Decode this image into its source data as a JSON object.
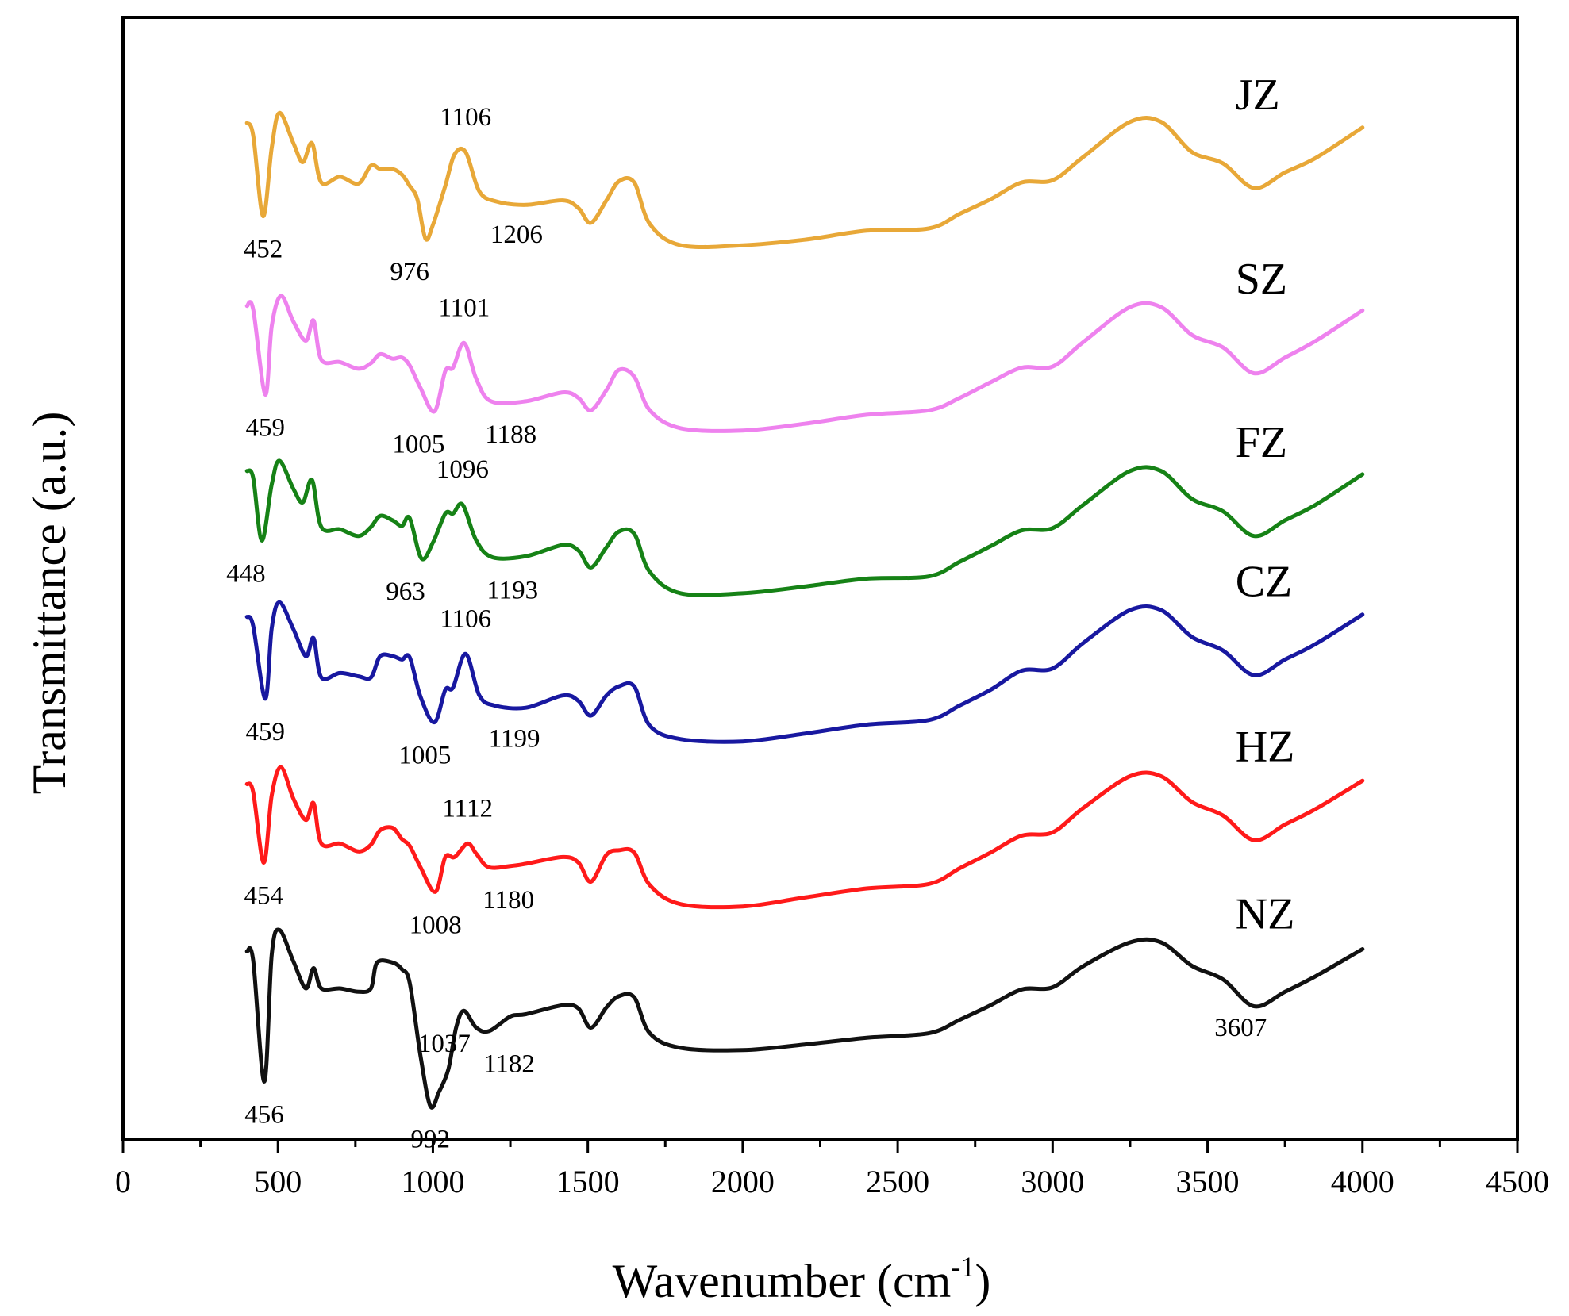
{
  "chart_data": {
    "type": "line",
    "title": "",
    "xlabel": "Wavenumber (cm",
    "xlabel_sup": "-1",
    "xlabel_close": ")",
    "ylabel": "Transmittance (a.u.)",
    "xlim": [
      0,
      4500
    ],
    "ylim": [
      0,
      1
    ],
    "xticks": [
      0,
      500,
      1000,
      1500,
      2000,
      2500,
      3000,
      3500,
      4000,
      4500
    ],
    "xtick_labels": [
      "0",
      "500",
      "1000",
      "1500",
      "2000",
      "2500",
      "3000",
      "3500",
      "4000",
      "4500"
    ],
    "grid": false,
    "y_units": "offset transmittance (a.u.), 0 = bottom axis, 1 = top of frame",
    "series": [
      {
        "name": "JZ",
        "color": "#E8A838",
        "x": [
          400,
          420,
          452,
          480,
          505,
          550,
          580,
          610,
          640,
          700,
          760,
          800,
          830,
          870,
          900,
          925,
          950,
          976,
          1000,
          1040,
          1070,
          1106,
          1150,
          1206,
          1300,
          1420,
          1470,
          1510,
          1560,
          1600,
          1650,
          1700,
          1800,
          2000,
          2200,
          2400,
          2600,
          2700,
          2800,
          2900,
          3000,
          3100,
          3250,
          3350,
          3450,
          3550,
          3650,
          3750,
          3850,
          4000
        ],
        "values": [
          0.906,
          0.895,
          0.823,
          0.884,
          0.915,
          0.888,
          0.871,
          0.888,
          0.853,
          0.858,
          0.852,
          0.868,
          0.865,
          0.865,
          0.86,
          0.85,
          0.838,
          0.803,
          0.815,
          0.85,
          0.878,
          0.88,
          0.845,
          0.836,
          0.833,
          0.837,
          0.83,
          0.817,
          0.837,
          0.854,
          0.853,
          0.816,
          0.797,
          0.797,
          0.802,
          0.81,
          0.812,
          0.825,
          0.838,
          0.853,
          0.855,
          0.876,
          0.907,
          0.907,
          0.88,
          0.87,
          0.848,
          0.862,
          0.875,
          0.902
        ]
      },
      {
        "name": "SZ",
        "color": "#EE82EE",
        "x": [
          400,
          420,
          459,
          480,
          510,
          550,
          590,
          615,
          640,
          700,
          760,
          800,
          830,
          870,
          900,
          925,
          960,
          1005,
          1040,
          1065,
          1101,
          1140,
          1188,
          1300,
          1420,
          1470,
          1510,
          1560,
          1600,
          1650,
          1700,
          1800,
          2000,
          2200,
          2400,
          2600,
          2700,
          2800,
          2900,
          3000,
          3100,
          3250,
          3350,
          3450,
          3550,
          3650,
          3750,
          3850,
          4000
        ],
        "values": [
          0.743,
          0.74,
          0.664,
          0.725,
          0.752,
          0.729,
          0.712,
          0.73,
          0.695,
          0.693,
          0.687,
          0.692,
          0.7,
          0.696,
          0.697,
          0.69,
          0.67,
          0.649,
          0.685,
          0.688,
          0.71,
          0.678,
          0.658,
          0.658,
          0.666,
          0.661,
          0.65,
          0.668,
          0.686,
          0.68,
          0.65,
          0.634,
          0.632,
          0.638,
          0.646,
          0.65,
          0.661,
          0.675,
          0.688,
          0.689,
          0.711,
          0.742,
          0.742,
          0.717,
          0.706,
          0.683,
          0.697,
          0.712,
          0.739
        ]
      },
      {
        "name": "FZ",
        "color": "#168216",
        "x": [
          400,
          420,
          448,
          480,
          505,
          550,
          580,
          610,
          640,
          700,
          760,
          800,
          830,
          870,
          900,
          925,
          963,
          1000,
          1040,
          1065,
          1096,
          1140,
          1193,
          1300,
          1420,
          1470,
          1510,
          1560,
          1600,
          1650,
          1700,
          1800,
          2000,
          2200,
          2400,
          2600,
          2700,
          2800,
          2900,
          3000,
          3100,
          3250,
          3350,
          3450,
          3550,
          3650,
          3750,
          3850,
          4000
        ],
        "values": [
          0.596,
          0.59,
          0.534,
          0.584,
          0.605,
          0.58,
          0.568,
          0.588,
          0.546,
          0.544,
          0.538,
          0.546,
          0.556,
          0.552,
          0.547,
          0.554,
          0.518,
          0.532,
          0.558,
          0.558,
          0.566,
          0.534,
          0.519,
          0.52,
          0.53,
          0.525,
          0.51,
          0.528,
          0.542,
          0.54,
          0.506,
          0.487,
          0.487,
          0.493,
          0.5,
          0.502,
          0.515,
          0.529,
          0.543,
          0.545,
          0.566,
          0.596,
          0.596,
          0.571,
          0.56,
          0.538,
          0.552,
          0.566,
          0.593
        ]
      },
      {
        "name": "CZ",
        "color": "#1818A0",
        "x": [
          400,
          420,
          459,
          480,
          505,
          550,
          590,
          615,
          640,
          700,
          760,
          800,
          830,
          870,
          900,
          925,
          960,
          1005,
          1040,
          1065,
          1106,
          1150,
          1199,
          1300,
          1420,
          1470,
          1510,
          1560,
          1600,
          1650,
          1700,
          1800,
          2000,
          2200,
          2400,
          2600,
          2700,
          2800,
          2900,
          3000,
          3100,
          3250,
          3350,
          3450,
          3550,
          3650,
          3750,
          3850,
          4000
        ],
        "values": [
          0.466,
          0.458,
          0.393,
          0.456,
          0.479,
          0.455,
          0.431,
          0.447,
          0.412,
          0.416,
          0.413,
          0.412,
          0.431,
          0.431,
          0.428,
          0.43,
          0.395,
          0.372,
          0.401,
          0.403,
          0.433,
          0.396,
          0.387,
          0.385,
          0.396,
          0.391,
          0.378,
          0.396,
          0.404,
          0.404,
          0.369,
          0.357,
          0.355,
          0.362,
          0.37,
          0.374,
          0.387,
          0.401,
          0.418,
          0.42,
          0.443,
          0.472,
          0.472,
          0.448,
          0.436,
          0.414,
          0.428,
          0.442,
          0.468
        ]
      },
      {
        "name": "HZ",
        "color": "#FF1A1A",
        "x": [
          400,
          420,
          454,
          480,
          510,
          550,
          590,
          615,
          640,
          700,
          760,
          800,
          830,
          870,
          900,
          925,
          960,
          1008,
          1040,
          1070,
          1112,
          1140,
          1180,
          1250,
          1300,
          1420,
          1470,
          1510,
          1560,
          1600,
          1650,
          1700,
          1800,
          2000,
          2200,
          2400,
          2600,
          2700,
          2800,
          2900,
          3000,
          3100,
          3250,
          3350,
          3450,
          3550,
          3650,
          3750,
          3850,
          4000
        ],
        "values": [
          0.317,
          0.31,
          0.247,
          0.307,
          0.332,
          0.304,
          0.285,
          0.3,
          0.264,
          0.264,
          0.257,
          0.263,
          0.276,
          0.278,
          0.268,
          0.262,
          0.243,
          0.221,
          0.252,
          0.252,
          0.264,
          0.255,
          0.243,
          0.244,
          0.246,
          0.252,
          0.247,
          0.23,
          0.254,
          0.258,
          0.256,
          0.227,
          0.21,
          0.208,
          0.216,
          0.224,
          0.228,
          0.242,
          0.256,
          0.271,
          0.274,
          0.296,
          0.324,
          0.324,
          0.301,
          0.289,
          0.267,
          0.281,
          0.295,
          0.32
        ]
      },
      {
        "name": "NZ",
        "color": "#111111",
        "x": [
          400,
          420,
          456,
          480,
          505,
          550,
          590,
          615,
          640,
          700,
          760,
          800,
          820,
          870,
          900,
          925,
          960,
          992,
          1020,
          1050,
          1075,
          1100,
          1140,
          1182,
          1250,
          1300,
          1420,
          1470,
          1510,
          1560,
          1600,
          1650,
          1700,
          1800,
          2000,
          2200,
          2400,
          2600,
          2700,
          2800,
          2900,
          3000,
          3100,
          3250,
          3350,
          3450,
          3550,
          3650,
          3750,
          3850,
          4000
        ],
        "values": [
          0.168,
          0.16,
          0.052,
          0.165,
          0.187,
          0.159,
          0.135,
          0.153,
          0.135,
          0.135,
          0.132,
          0.135,
          0.158,
          0.158,
          0.152,
          0.14,
          0.075,
          0.03,
          0.043,
          0.063,
          0.1,
          0.115,
          0.1,
          0.097,
          0.11,
          0.112,
          0.12,
          0.117,
          0.1,
          0.118,
          0.128,
          0.127,
          0.095,
          0.082,
          0.08,
          0.085,
          0.091,
          0.095,
          0.107,
          0.12,
          0.134,
          0.136,
          0.155,
          0.176,
          0.176,
          0.155,
          0.143,
          0.119,
          0.132,
          0.146,
          0.17
        ]
      }
    ],
    "series_labels": [
      "JZ",
      "SZ",
      "FZ",
      "CZ",
      "HZ",
      "NZ"
    ],
    "annotations": [
      {
        "text": "452",
        "x": 452,
        "series": "JZ"
      },
      {
        "text": "976",
        "x": 976,
        "series": "JZ"
      },
      {
        "text": "1106",
        "x": 1106,
        "series": "JZ"
      },
      {
        "text": "1206",
        "x": 1206,
        "series": "JZ"
      },
      {
        "text": "459",
        "x": 459,
        "series": "SZ"
      },
      {
        "text": "1005",
        "x": 1005,
        "series": "SZ"
      },
      {
        "text": "1101",
        "x": 1101,
        "series": "SZ"
      },
      {
        "text": "1188",
        "x": 1188,
        "series": "SZ"
      },
      {
        "text": "448",
        "x": 448,
        "series": "FZ"
      },
      {
        "text": "963",
        "x": 963,
        "series": "FZ"
      },
      {
        "text": "1096",
        "x": 1096,
        "series": "FZ"
      },
      {
        "text": "1193",
        "x": 1193,
        "series": "FZ"
      },
      {
        "text": "459",
        "x": 459,
        "series": "CZ"
      },
      {
        "text": "1005",
        "x": 1005,
        "series": "CZ"
      },
      {
        "text": "1106",
        "x": 1106,
        "series": "CZ"
      },
      {
        "text": "1199",
        "x": 1199,
        "series": "CZ"
      },
      {
        "text": "454",
        "x": 454,
        "series": "HZ"
      },
      {
        "text": "1008",
        "x": 1008,
        "series": "HZ"
      },
      {
        "text": "1112",
        "x": 1112,
        "series": "HZ"
      },
      {
        "text": "1180",
        "x": 1180,
        "series": "HZ"
      },
      {
        "text": "456",
        "x": 456,
        "series": "NZ"
      },
      {
        "text": "992",
        "x": 992,
        "series": "NZ"
      },
      {
        "text": "1037",
        "x": 1037,
        "series": "NZ"
      },
      {
        "text": "1182",
        "x": 1182,
        "series": "NZ"
      },
      {
        "text": "3607",
        "x": 3607,
        "series": "NZ"
      }
    ]
  }
}
